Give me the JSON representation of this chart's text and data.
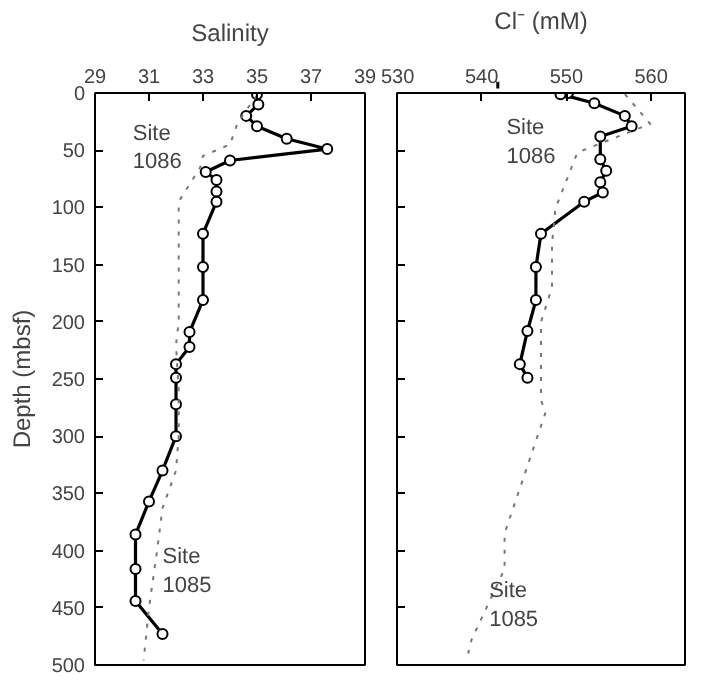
{
  "chart_data": [
    {
      "type": "line",
      "xlabel": "Salinity",
      "ylabel": "Depth (mbsf)",
      "xlim": [
        29,
        39
      ],
      "xticks": [
        29,
        31,
        33,
        35,
        37,
        39
      ],
      "ylim": [
        500,
        0
      ],
      "yticks": [
        0,
        50,
        100,
        150,
        200,
        250,
        300,
        350,
        400,
        450,
        500
      ],
      "grid": false,
      "series": [
        {
          "color": "#000000",
          "marker": "circle",
          "line_style": "solid",
          "x": [
            35.0,
            35.05,
            34.6,
            35.0,
            36.1,
            37.6,
            34.0,
            33.1,
            33.5,
            33.5,
            33.5,
            33.0,
            33.0,
            33.0,
            32.5,
            32.5,
            32.0,
            32.0,
            32.0,
            32.0,
            31.5,
            31.0,
            30.5,
            30.5,
            30.5,
            31.5
          ],
          "values": [
            1,
            10,
            20,
            29,
            40,
            49,
            59,
            69,
            76,
            86,
            95,
            123,
            152,
            181,
            209,
            222,
            237,
            249,
            272,
            300,
            330,
            357,
            386,
            416,
            444,
            473
          ]
        },
        {
          "color": "#777777",
          "marker": "none",
          "line_style": "dotted",
          "x": [
            35.0,
            34.3,
            34.0,
            33.0,
            32.9,
            32.1,
            32.1,
            32.0,
            32.1,
            32.1,
            32.0,
            31.5,
            31.3,
            31.0,
            30.8
          ],
          "values": [
            2,
            25,
            45,
            55,
            65,
            95,
            200,
            220,
            260,
            300,
            330,
            363,
            400,
            450,
            496
          ]
        }
      ],
      "annotations": [
        "Site\n1086",
        "Site\n1085"
      ]
    },
    {
      "type": "line",
      "xlabel": "Cl⁻ (mM)",
      "xlim": [
        530,
        564
      ],
      "xticks": [
        530,
        540,
        550,
        560
      ],
      "ylim": [
        500,
        0
      ],
      "yticks": [
        0,
        50,
        100,
        150,
        200,
        250,
        300,
        350,
        400,
        450,
        500
      ],
      "tick_labels": "x",
      "grid": false,
      "series": [
        {
          "color": "#000000",
          "marker": "circle",
          "line_style": "solid",
          "x": [
            550.2,
            549.3,
            553.3,
            556.9,
            557.7,
            554.0,
            554.0,
            554.7,
            554.0,
            554.3,
            552.1,
            547.0,
            546.4,
            546.4,
            545.4,
            544.5,
            545.4
          ],
          "values": [
            0,
            1,
            9,
            20,
            29,
            38,
            58,
            68,
            78,
            87,
            95,
            123,
            152,
            181,
            208,
            237,
            249
          ]
        },
        {
          "color": "#777777",
          "marker": "none",
          "line_style": "dotted",
          "x": [
            556.9,
            559.9,
            551.3,
            548.7,
            548.3,
            548.3,
            547.0,
            547.0,
            547.5,
            542.7,
            542.7,
            538.8,
            538.4
          ],
          "values": [
            1,
            27,
            52,
            101,
            132,
            170,
            200,
            268,
            280,
            385,
            416,
            478,
            490
          ]
        }
      ],
      "annotations": [
        "Site\n1086",
        "Site\n1085"
      ]
    }
  ]
}
